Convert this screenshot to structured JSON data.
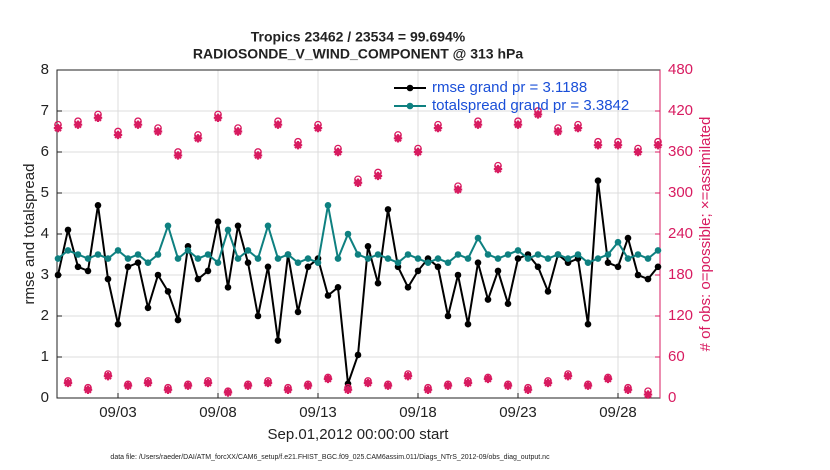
{
  "chart_data": {
    "type": "line",
    "title": [
      "Tropics 23462 / 23534 = 99.694%",
      "RADIOSONDE_V_WIND_COMPONENT @ 313 hPa"
    ],
    "x_label": "Sep.01,2012 00:00:00 start",
    "y_label": "rmse and totalspread",
    "y2_label": "# of obs: o=possible; ×=assimilated",
    "footnote": "data file: /Users/raeder/DAI/ATM_forcXX/CAM6_setup/f.e21.FHIST_BGC.f09_025.CAM6assim.011/Diags_NTrS_2012-09/obs_diag_output.nc",
    "xlim": [
      -1.05,
      29.1
    ],
    "xticks": [
      {
        "value": 2,
        "label": "09/03"
      },
      {
        "value": 7,
        "label": "09/08"
      },
      {
        "value": 12,
        "label": "09/13"
      },
      {
        "value": 17,
        "label": "09/18"
      },
      {
        "value": 22,
        "label": "09/23"
      },
      {
        "value": 27,
        "label": "09/28"
      }
    ],
    "ylim": [
      0,
      8
    ],
    "yticks": [
      0,
      1,
      2,
      3,
      4,
      5,
      6,
      7,
      8
    ],
    "y2lim": [
      0,
      480
    ],
    "y2ticks": [
      0,
      60,
      120,
      180,
      240,
      300,
      360,
      420,
      480
    ],
    "legend": "northeast",
    "x": [
      -1,
      -0.5,
      0,
      0.5,
      1,
      1.5,
      2,
      2.5,
      3,
      3.5,
      4,
      4.5,
      5,
      5.5,
      6,
      6.5,
      7,
      7.5,
      8,
      8.5,
      9,
      9.5,
      10,
      10.5,
      11,
      11.5,
      12,
      12.5,
      13,
      13.5,
      14,
      14.5,
      15,
      15.5,
      16,
      16.5,
      17,
      17.5,
      18,
      18.5,
      19,
      19.5,
      20,
      20.5,
      21,
      21.5,
      22,
      22.5,
      23,
      23.5,
      24,
      24.5,
      25,
      25.5,
      26,
      26.5,
      27,
      27.5,
      28,
      28.5,
      29
    ],
    "series": [
      {
        "name": "rmse grand pr = 3.1188",
        "color": "#000000",
        "marker": "dot",
        "values": [
          3.0,
          4.1,
          3.2,
          3.1,
          4.7,
          2.9,
          1.8,
          3.2,
          3.3,
          2.2,
          3.0,
          2.6,
          1.9,
          3.7,
          2.9,
          3.1,
          4.3,
          2.7,
          4.2,
          3.3,
          2.0,
          3.2,
          1.4,
          3.5,
          2.1,
          3.2,
          3.4,
          2.5,
          2.7,
          0.35,
          1.05,
          3.7,
          2.8,
          4.6,
          3.2,
          2.7,
          3.1,
          3.4,
          3.2,
          2.0,
          3.0,
          1.8,
          3.3,
          2.4,
          3.1,
          2.3,
          3.4,
          3.5,
          3.2,
          2.6,
          3.5,
          3.3,
          3.4,
          1.8,
          5.3,
          3.3,
          3.2,
          3.9,
          3.0,
          2.9,
          3.2
        ]
      },
      {
        "name": "totalspread grand pr = 3.3842",
        "color": "#0e8080",
        "marker": "dot",
        "values": [
          3.4,
          3.6,
          3.5,
          3.4,
          3.5,
          3.4,
          3.6,
          3.4,
          3.5,
          3.3,
          3.5,
          4.2,
          3.4,
          3.6,
          3.4,
          3.5,
          3.3,
          4.1,
          3.4,
          3.6,
          3.4,
          4.2,
          3.4,
          3.5,
          3.3,
          3.4,
          3.3,
          4.7,
          3.4,
          4.0,
          3.5,
          3.4,
          3.5,
          3.4,
          3.3,
          3.5,
          3.4,
          3.3,
          3.4,
          3.3,
          3.5,
          3.4,
          3.9,
          3.5,
          3.4,
          3.5,
          3.6,
          3.4,
          3.5,
          3.4,
          3.5,
          3.4,
          3.5,
          3.3,
          3.4,
          3.5,
          3.8,
          3.4,
          3.5,
          3.4,
          3.6
        ]
      },
      {
        "color": "#d81b60",
        "marker": "circle",
        "axis": "y2",
        "values": [
          400,
          25,
          405,
          15,
          415,
          35,
          390,
          20,
          405,
          25,
          395,
          15,
          360,
          20,
          385,
          25,
          415,
          10,
          395,
          20,
          360,
          25,
          405,
          15,
          375,
          20,
          400,
          30,
          365,
          15,
          320,
          25,
          330,
          20,
          385,
          35,
          365,
          15,
          400,
          20,
          310,
          25,
          405,
          30,
          340,
          20,
          405,
          15,
          420,
          25,
          395,
          35,
          400,
          20,
          375,
          30,
          375,
          15,
          365,
          10,
          375
        ]
      },
      {
        "color": "#d81b60",
        "marker": "star",
        "axis": "y2",
        "values": [
          395,
          22,
          400,
          12,
          410,
          32,
          385,
          18,
          400,
          22,
          390,
          12,
          355,
          18,
          380,
          22,
          410,
          8,
          390,
          18,
          355,
          22,
          400,
          12,
          370,
          18,
          395,
          28,
          360,
          12,
          315,
          22,
          325,
          18,
          380,
          32,
          360,
          12,
          395,
          18,
          305,
          22,
          400,
          28,
          335,
          18,
          400,
          12,
          415,
          22,
          390,
          32,
          395,
          18,
          370,
          28,
          370,
          12,
          360,
          5,
          370
        ]
      }
    ]
  }
}
